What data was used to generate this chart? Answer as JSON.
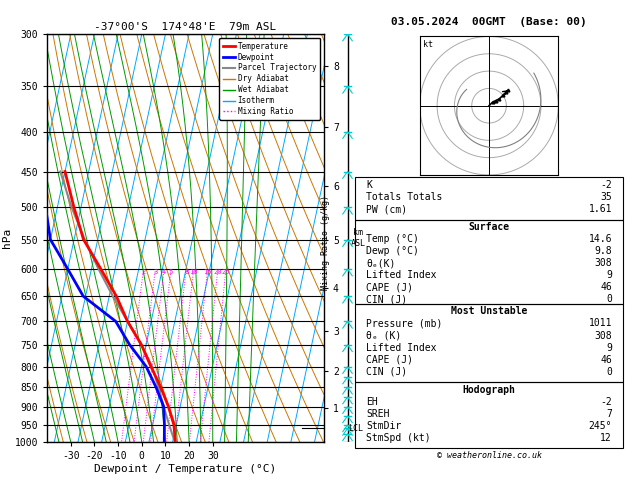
{
  "title_left": "-37°00'S  174°48'E  79m ASL",
  "title_right": "03.05.2024  00GMT  (Base: 00)",
  "xlabel": "Dewpoint / Temperature (°C)",
  "ylabel_left": "hPa",
  "pressure_levels": [
    300,
    350,
    400,
    450,
    500,
    550,
    600,
    650,
    700,
    750,
    800,
    850,
    900,
    950,
    1000
  ],
  "pmin": 300,
  "pmax": 1000,
  "tmin": -40,
  "tmax": 40,
  "skew_factor": 37.0,
  "temp_profile": {
    "temp": [
      14.6,
      14.2,
      12.0,
      8.0,
      3.0,
      -3.0,
      -9.0,
      -17.0,
      -24.0,
      -33.0,
      -43.0,
      -50.0,
      -57.0
    ],
    "pres": [
      1011,
      1000,
      950,
      900,
      850,
      800,
      750,
      700,
      650,
      600,
      550,
      500,
      450
    ],
    "color": "#ff0000",
    "linewidth": 2.0
  },
  "dewp_profile": {
    "temp": [
      9.8,
      9.5,
      8.0,
      6.0,
      1.0,
      -5.0,
      -14.0,
      -22.0,
      -38.0,
      -47.0,
      -57.0,
      -62.0,
      -65.0
    ],
    "pres": [
      1011,
      1000,
      950,
      900,
      850,
      800,
      750,
      700,
      650,
      600,
      550,
      500,
      450
    ],
    "color": "#0000ff",
    "linewidth": 2.0
  },
  "parcel_profile": {
    "temp": [
      14.6,
      14.0,
      10.0,
      6.0,
      2.0,
      -2.5,
      -9.0,
      -17.0,
      -25.5,
      -34.0,
      -42.5,
      -51.0,
      -59.0
    ],
    "pres": [
      1011,
      1000,
      950,
      900,
      850,
      800,
      750,
      700,
      650,
      600,
      550,
      500,
      450
    ],
    "color": "#888888",
    "linewidth": 1.5
  },
  "dry_adiabat_color": "#cc7700",
  "wet_adiabat_color": "#009900",
  "isotherm_color": "#00aaff",
  "mixing_ratio_color": "#ff00ff",
  "mixing_ratio_lines": [
    2,
    3,
    4,
    5,
    8,
    10,
    15,
    20,
    25
  ],
  "km_ticks": [
    1,
    2,
    3,
    4,
    5,
    6,
    7,
    8
  ],
  "km_pressures": [
    905,
    810,
    720,
    635,
    550,
    470,
    395,
    330
  ],
  "LCL_pressure": 960,
  "stats": {
    "K": -2,
    "Totals_Totals": 35,
    "PW_cm": 1.61,
    "Surface": {
      "Temp_C": 14.6,
      "Dewp_C": 9.8,
      "theta_e_K": 308,
      "Lifted_Index": 9,
      "CAPE_J": 46,
      "CIN_J": 0
    },
    "Most_Unstable": {
      "Pressure_mb": 1011,
      "theta_e_K": 308,
      "Lifted_Index": 9,
      "CAPE_J": 46,
      "CIN_J": 0
    },
    "Hodograph": {
      "EH": -2,
      "SREH": 7,
      "StmDir_deg": 245,
      "StmSpd_kt": 12
    }
  },
  "legend_items": [
    {
      "label": "Temperature",
      "color": "#ff0000",
      "lw": 2,
      "ls": "-"
    },
    {
      "label": "Dewpoint",
      "color": "#0000ff",
      "lw": 2,
      "ls": "-"
    },
    {
      "label": "Parcel Trajectory",
      "color": "#888888",
      "lw": 1.5,
      "ls": "-"
    },
    {
      "label": "Dry Adiabat",
      "color": "#cc7700",
      "lw": 1,
      "ls": "-"
    },
    {
      "label": "Wet Adiabat",
      "color": "#009900",
      "lw": 1,
      "ls": "-"
    },
    {
      "label": "Isotherm",
      "color": "#00aaff",
      "lw": 1,
      "ls": "-"
    },
    {
      "label": "Mixing Ratio",
      "color": "#ff00ff",
      "lw": 1,
      "ls": ":"
    }
  ]
}
